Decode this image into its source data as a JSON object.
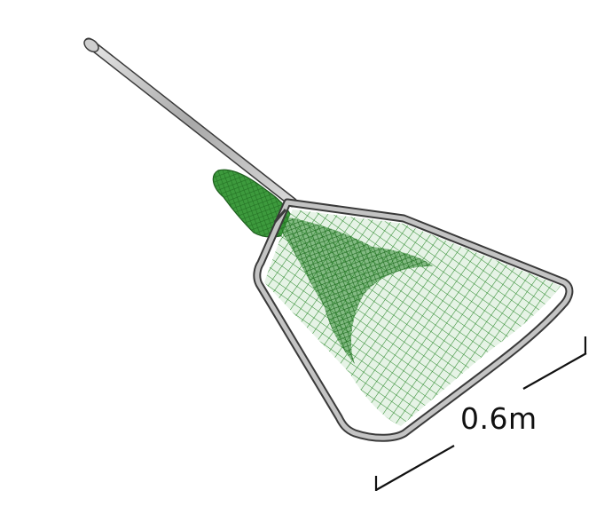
{
  "image": {
    "subject": "net-illustration"
  },
  "scale_bar": {
    "label": "0.6m"
  },
  "colors": {
    "net": "#2e8b2e",
    "net_dark": "#1f5e1f",
    "frame": "#b8b8b8",
    "frame_outline": "#3a3a3a",
    "scale_line": "#111111"
  }
}
